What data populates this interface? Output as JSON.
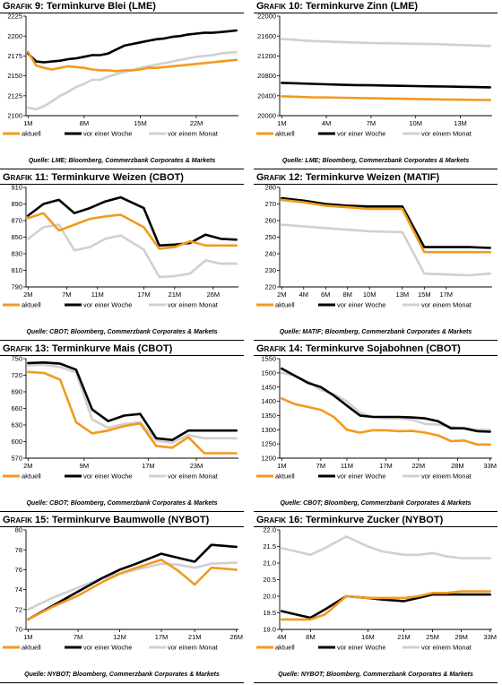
{
  "colors": {
    "aktuell": "#F29A1E",
    "woche": "#000000",
    "monat": "#D0D0D0"
  },
  "legend_labels": [
    "aktuell",
    "vor einer Woche",
    "vor einem Monat"
  ],
  "panels": [
    {
      "prefix": "Grafik 9:",
      "title": "Terminkurve Blei (LME)",
      "source": "Quelle: LME; Bloomberg, Commerzbank Corporates & Markets",
      "chart_data": {
        "type": "line",
        "x": [
          1,
          2,
          3,
          4,
          5,
          6,
          7,
          8,
          9,
          10,
          11,
          12,
          13,
          14,
          15,
          16,
          17,
          18,
          19,
          20,
          21,
          22,
          23,
          24,
          25,
          26,
          27
        ],
        "x_ticks": [
          1,
          8,
          15,
          22
        ],
        "x_tick_labels": [
          "1M",
          "8M",
          "15M",
          "22M"
        ],
        "ylim": [
          2100,
          2225
        ],
        "y_ticks": [
          2100,
          2125,
          2150,
          2175,
          2200,
          2225
        ],
        "series": [
          {
            "name": "aktuell",
            "values": [
              2180,
              2163,
              2160,
              2158,
              2160,
              2162,
              2161,
              2160,
              2158,
              2157,
              2157,
              2156,
              2157,
              2157,
              2158,
              2160,
              2160,
              2161,
              2162,
              2163,
              2164,
              2165,
              2166,
              2167,
              2168,
              2169,
              2170
            ]
          },
          {
            "name": "vor einer Woche",
            "values": [
              2178,
              2168,
              2167,
              2168,
              2169,
              2171,
              2172,
              2174,
              2176,
              2176,
              2178,
              2183,
              2188,
              2190,
              2192,
              2194,
              2196,
              2197,
              2199,
              2200,
              2202,
              2203,
              2204,
              2204,
              2205,
              2206,
              2207
            ]
          },
          {
            "name": "vor einem Monat",
            "values": [
              2110,
              2108,
              2112,
              2118,
              2125,
              2130,
              2136,
              2140,
              2145,
              2145,
              2149,
              2152,
              2155,
              2157,
              2160,
              2162,
              2164,
              2166,
              2168,
              2170,
              2172,
              2174,
              2175,
              2176,
              2178,
              2179,
              2180
            ]
          }
        ]
      }
    },
    {
      "prefix": "Grafik 10:",
      "title": "Terminkurve Zinn (LME)",
      "source": "Quelle: LME; Bloomberg, Commerzbank Corporates & Markets",
      "chart_data": {
        "type": "line",
        "x": [
          1,
          2,
          3,
          4,
          5,
          6,
          7,
          8,
          9,
          10,
          11,
          12,
          13,
          14,
          15
        ],
        "x_ticks": [
          1,
          4,
          7,
          10,
          13
        ],
        "x_tick_labels": [
          "1M",
          "4M",
          "7M",
          "10M",
          "13M"
        ],
        "ylim": [
          20000,
          22000
        ],
        "y_ticks": [
          20000,
          20400,
          20800,
          21200,
          21600,
          22000
        ],
        "series": [
          {
            "name": "aktuell",
            "values": [
              20390,
              20380,
              20370,
              20365,
              20360,
              20355,
              20350,
              20345,
              20340,
              20335,
              20330,
              20325,
              20320,
              20318,
              20315
            ]
          },
          {
            "name": "vor einer Woche",
            "values": [
              20660,
              20650,
              20640,
              20630,
              20620,
              20615,
              20610,
              20605,
              20600,
              20595,
              20590,
              20585,
              20580,
              20575,
              20570
            ]
          },
          {
            "name": "vor einem Monat",
            "values": [
              21540,
              21520,
              21500,
              21490,
              21480,
              21470,
              21460,
              21455,
              21450,
              21445,
              21440,
              21430,
              21420,
              21410,
              21400
            ]
          }
        ]
      }
    },
    {
      "prefix": "Grafik 11:",
      "title": "Terminkurve Weizen (CBOT)",
      "source": "Quelle: CBOT; Bloomberg, Commerzbank Corporates & Markets",
      "chart_data": {
        "type": "line",
        "x": [
          2,
          4,
          6,
          8,
          10,
          12,
          14,
          17,
          19,
          21,
          23,
          25,
          27,
          29
        ],
        "x_ticks": [
          2,
          7,
          11,
          17,
          21,
          26
        ],
        "x_tick_labels": [
          "2M",
          "7M",
          "11M",
          "17M",
          "21M",
          "26M"
        ],
        "ylim": [
          790,
          910
        ],
        "y_ticks": [
          790,
          810,
          830,
          850,
          870,
          890,
          910
        ],
        "series": [
          {
            "name": "aktuell",
            "values": [
              873,
              879,
              858,
              865,
              872,
              875,
              877,
              862,
              836,
              838,
              845,
              840,
              840,
              840
            ]
          },
          {
            "name": "vor einer Woche",
            "values": [
              876,
              890,
              895,
              879,
              885,
              893,
              898,
              885,
              840,
              841,
              843,
              853,
              848,
              847
            ]
          },
          {
            "name": "vor einem Monat",
            "values": [
              848,
              862,
              865,
              834,
              838,
              848,
              852,
              835,
              802,
              803,
              806,
              822,
              818,
              818
            ]
          }
        ]
      }
    },
    {
      "prefix": "Grafik 12:",
      "title": "Terminkurve Weizen (MATIF)",
      "source": "Quelle: MATIF; Bloomberg, Commerzbank Corporates & Markets",
      "chart_data": {
        "type": "line",
        "x": [
          2,
          4,
          6,
          8,
          10,
          13,
          15,
          17,
          19,
          21
        ],
        "x_ticks": [
          2,
          4,
          6,
          8,
          10,
          13,
          15,
          17
        ],
        "x_tick_labels": [
          "2M",
          "4M",
          "6M",
          "8M",
          "10M",
          "13M",
          "15M",
          "17M"
        ],
        "ylim": [
          220,
          280
        ],
        "y_ticks": [
          220,
          230,
          240,
          250,
          260,
          270,
          280
        ],
        "series": [
          {
            "name": "aktuell",
            "values": [
              272.5,
              271,
              269,
              268,
              267,
              267,
              241,
              241,
              241,
              241
            ]
          },
          {
            "name": "vor einer Woche",
            "values": [
              273.5,
              272,
              270,
              269,
              268.5,
              268.5,
              244,
              244,
              244,
              243.5
            ]
          },
          {
            "name": "vor einem Monat",
            "values": [
              257.5,
              256.5,
              255.5,
              254.5,
              253.5,
              253,
              228,
              227.5,
              227,
              228
            ]
          }
        ]
      }
    },
    {
      "prefix": "Grafik 13:",
      "title": "Terminkurve Mais (CBOT)",
      "source": "Quelle: CBOT; Bloomberg, Commerzbank Corporates & Markets",
      "chart_data": {
        "type": "line",
        "x": [
          2,
          4,
          6,
          8,
          10,
          12,
          14,
          16,
          18,
          20,
          22,
          24,
          26,
          28
        ],
        "x_ticks": [
          2,
          9,
          17,
          23
        ],
        "x_tick_labels": [
          "2M",
          "9M",
          "17M",
          "23M"
        ],
        "ylim": [
          570,
          750
        ],
        "y_ticks": [
          570,
          600,
          630,
          660,
          690,
          720,
          750
        ],
        "series": [
          {
            "name": "aktuell",
            "values": [
              726,
              724,
              712,
              635,
              615,
              620,
              628,
              633,
              592,
              589,
              608,
              579,
              579,
              579
            ]
          },
          {
            "name": "vor einer Woche",
            "values": [
              742,
              743,
              741,
              730,
              658,
              637,
              647,
              650,
              606,
              603,
              620,
              620,
              620,
              620
            ]
          },
          {
            "name": "vor einem Monat",
            "values": [
              738,
              739,
              735,
              725,
              640,
              625,
              632,
              635,
              602,
              598,
              612,
              606,
              606,
              606
            ]
          }
        ]
      }
    },
    {
      "prefix": "Grafik 14:",
      "title": "Terminkurve Sojabohnen (CBOT)",
      "source": "Quelle: CBOT; Bloomberg, Commerzbank Corporates & Markets",
      "chart_data": {
        "type": "line",
        "x": [
          1,
          3,
          5,
          7,
          9,
          11,
          13,
          15,
          17,
          19,
          21,
          23,
          25,
          27,
          29,
          31,
          33
        ],
        "x_ticks": [
          1,
          7,
          11,
          17,
          22,
          28,
          33
        ],
        "x_tick_labels": [
          "1M",
          "7M",
          "11M",
          "17M",
          "22M",
          "28M",
          "33M"
        ],
        "ylim": [
          1200,
          1550
        ],
        "y_ticks": [
          1200,
          1250,
          1300,
          1350,
          1400,
          1450,
          1500,
          1550
        ],
        "series": [
          {
            "name": "aktuell",
            "values": [
              1410,
              1390,
              1380,
              1370,
              1345,
              1300,
              1290,
              1298,
              1298,
              1295,
              1296,
              1290,
              1280,
              1260,
              1262,
              1248,
              1248
            ]
          },
          {
            "name": "vor einer Woche",
            "values": [
              1515,
              1490,
              1465,
              1450,
              1420,
              1385,
              1350,
              1345,
              1345,
              1345,
              1343,
              1340,
              1330,
              1305,
              1305,
              1295,
              1293
            ]
          },
          {
            "name": "vor einem Monat",
            "values": [
              1500,
              1490,
              1470,
              1440,
              1425,
              1400,
              1360,
              1345,
              1340,
              1340,
              1335,
              1320,
              1318,
              1310,
              1305,
              1300,
              1300
            ]
          }
        ]
      }
    },
    {
      "prefix": "Grafik 15:",
      "title": "Terminkurve Baumwolle (NYBOT)",
      "source": "Quelle: NYBOT; Bloomberg, Commerzbank Corporates & Markets",
      "chart_data": {
        "type": "line",
        "x": [
          1,
          4,
          7,
          10,
          12,
          14,
          17,
          19,
          21,
          23,
          26
        ],
        "x_ticks": [
          1,
          7,
          12,
          17,
          21,
          26
        ],
        "x_tick_labels": [
          "1M",
          "7M",
          "12M",
          "17M",
          "21M",
          "26M"
        ],
        "ylim": [
          70,
          80
        ],
        "y_ticks": [
          70,
          72,
          74,
          76,
          78,
          80
        ],
        "series": [
          {
            "name": "aktuell",
            "values": [
              71,
              72.3,
              73.4,
              74.8,
              75.6,
              76.2,
              77.0,
              75.9,
              74.5,
              76.2,
              76.0
            ]
          },
          {
            "name": "vor einer Woche",
            "values": [
              71,
              72.4,
              73.8,
              75.2,
              76.0,
              76.6,
              77.6,
              77.2,
              76.8,
              78.5,
              78.3
            ]
          },
          {
            "name": "vor einem Monat",
            "values": [
              72,
              73.2,
              74.2,
              75.2,
              75.6,
              76.0,
              76.6,
              76.5,
              76.2,
              76.6,
              76.7
            ]
          }
        ]
      }
    },
    {
      "prefix": "Grafik 16:",
      "title": "Terminkurve Zucker (NYBOT)",
      "source": "Quelle: NYBOT; Bloomberg, Commerzbank Corporates & Markets",
      "chart_data": {
        "type": "line",
        "x": [
          4,
          6,
          8,
          10,
          13,
          16,
          18,
          21,
          23,
          25,
          27,
          29,
          31,
          33
        ],
        "x_ticks": [
          4,
          8,
          16,
          21,
          25,
          29,
          33
        ],
        "x_tick_labels": [
          "4M",
          "8M",
          "16M",
          "21M",
          "25M",
          "29M",
          "33M"
        ],
        "ylim": [
          19.0,
          22.0
        ],
        "y_ticks": [
          19.0,
          19.5,
          20.0,
          20.5,
          21.0,
          21.5,
          22.0
        ],
        "series": [
          {
            "name": "aktuell",
            "values": [
              19.3,
              19.3,
              19.3,
              19.45,
              20.0,
              19.95,
              19.95,
              19.95,
              20.0,
              20.1,
              20.1,
              20.15,
              20.15,
              20.15
            ]
          },
          {
            "name": "vor einer Woche",
            "values": [
              19.55,
              19.45,
              19.35,
              19.6,
              20.0,
              19.95,
              19.9,
              19.85,
              19.95,
              20.05,
              20.05,
              20.05,
              20.05,
              20.05
            ]
          },
          {
            "name": "vor einem Monat",
            "values": [
              21.45,
              21.35,
              21.25,
              21.45,
              21.8,
              21.5,
              21.35,
              21.25,
              21.25,
              21.3,
              21.2,
              21.15,
              21.15,
              21.15
            ]
          }
        ]
      }
    }
  ]
}
